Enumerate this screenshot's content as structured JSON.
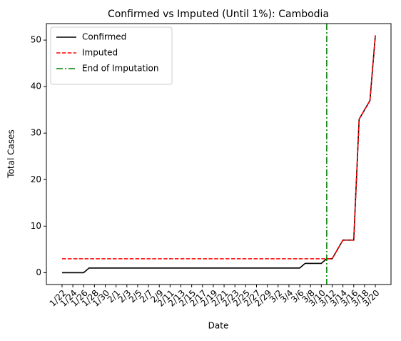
{
  "chart_data": {
    "type": "line",
    "title": "Confirmed vs Imputed (Until 1%): Cambodia",
    "xlabel": "Date",
    "ylabel": "Total Cases",
    "categories": [
      "1/22",
      null,
      "1/24",
      null,
      "1/26",
      null,
      "1/28",
      null,
      "1/30",
      null,
      "2/1",
      null,
      "2/3",
      null,
      "2/5",
      null,
      "2/7",
      null,
      "2/9",
      null,
      "2/11",
      null,
      "2/13",
      null,
      "2/15",
      null,
      "2/17",
      null,
      "2/19",
      null,
      "2/21",
      null,
      "2/23",
      null,
      "2/25",
      null,
      "2/27",
      null,
      "2/29",
      null,
      "3/2",
      null,
      "3/4",
      null,
      "3/6",
      null,
      "3/8",
      null,
      "3/10",
      null,
      "3/12",
      null,
      "3/14",
      null,
      "3/16",
      null,
      "3/18",
      null,
      "3/20"
    ],
    "series": [
      {
        "name": "Confirmed",
        "color": "#000000",
        "dash": "solid",
        "values": [
          0,
          0,
          0,
          0,
          0,
          1,
          1,
          1,
          1,
          1,
          1,
          1,
          1,
          1,
          1,
          1,
          1,
          1,
          1,
          1,
          1,
          1,
          1,
          1,
          1,
          1,
          1,
          1,
          1,
          1,
          1,
          1,
          1,
          1,
          1,
          1,
          1,
          1,
          1,
          1,
          1,
          1,
          1,
          1,
          1,
          2,
          2,
          2,
          2,
          3,
          3,
          5,
          7,
          7,
          7,
          33,
          35,
          37,
          51
        ]
      },
      {
        "name": "Imputed",
        "color": "#ff0000",
        "dash": "dashed",
        "values": [
          3,
          3,
          3,
          3,
          3,
          3,
          3,
          3,
          3,
          3,
          3,
          3,
          3,
          3,
          3,
          3,
          3,
          3,
          3,
          3,
          3,
          3,
          3,
          3,
          3,
          3,
          3,
          3,
          3,
          3,
          3,
          3,
          3,
          3,
          3,
          3,
          3,
          3,
          3,
          3,
          3,
          3,
          3,
          3,
          3,
          3,
          3,
          3,
          3,
          3,
          3,
          5,
          7,
          7,
          7,
          33,
          35,
          37,
          51
        ]
      }
    ],
    "vline": {
      "name": "End of Imputation",
      "color": "#008000",
      "index": 49
    },
    "ylim": [
      -2.55,
      53.55
    ],
    "yticks": [
      0,
      10,
      20,
      30,
      40,
      50
    ],
    "legend": "upper left"
  }
}
